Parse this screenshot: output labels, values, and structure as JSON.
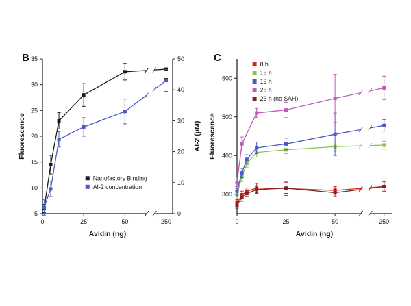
{
  "figure": {
    "background": "#ffffff",
    "axis_color": "#1a1a1a"
  },
  "chart_data": [
    {
      "panel": "B",
      "type": "line",
      "xlabel": "Avidin (ng)",
      "ylabel_left": "Fluorescence",
      "ylabel_right": "AI-2 (μM)",
      "x_ticks": [
        0,
        25,
        50,
        250
      ],
      "x_axis_break_after": 60,
      "yleft_range": [
        5,
        35
      ],
      "yleft_ticks": [
        5,
        10,
        15,
        20,
        25,
        30,
        35
      ],
      "yright_range": [
        0,
        50
      ],
      "yright_ticks": [
        0,
        10,
        20,
        30,
        40,
        50
      ],
      "grid": false,
      "legend_position": "bottom-right",
      "series": [
        {
          "name": "Nanofactory Binding",
          "color": "#1a1a1a",
          "axis": "left",
          "x": [
            1,
            5,
            10,
            25,
            50,
            250
          ],
          "y": [
            6,
            14.5,
            23,
            28,
            32.5,
            33
          ],
          "err": [
            0.8,
            1.8,
            1.6,
            2.2,
            1.6,
            1.8
          ]
        },
        {
          "name": "AI-2 concentration",
          "color": "#4a5ac2",
          "axis": "right",
          "x": [
            1,
            5,
            10,
            25,
            50,
            250
          ],
          "y": [
            2,
            8,
            24,
            28,
            33,
            43
          ],
          "err": [
            2.5,
            2.5,
            2.5,
            3,
            4,
            3.5
          ]
        }
      ]
    },
    {
      "panel": "C",
      "type": "line",
      "xlabel": "Avidin (ng)",
      "ylabel": "Fluorescence",
      "x_ticks": [
        0,
        25,
        50,
        250
      ],
      "x_axis_break_after": 60,
      "y_range": [
        250,
        650
      ],
      "y_ticks": [
        300,
        400,
        500,
        600
      ],
      "grid": false,
      "legend_position": "top-left",
      "series": [
        {
          "name": "8 h",
          "color": "#e0201c",
          "x": [
            0,
            2.5,
            5,
            10,
            25,
            50,
            250
          ],
          "y": [
            278,
            298,
            308,
            316,
            315,
            310,
            320
          ],
          "err": [
            8,
            10,
            8,
            12,
            18,
            10,
            12
          ]
        },
        {
          "name": "16 h",
          "color": "#8fc24e",
          "x": [
            0,
            2.5,
            5,
            10,
            25,
            50,
            250
          ],
          "y": [
            298,
            345,
            380,
            408,
            415,
            423,
            427
          ],
          "err": [
            10,
            12,
            10,
            12,
            10,
            12,
            10
          ]
        },
        {
          "name": "19 h",
          "color": "#4a5ac2",
          "x": [
            0,
            2.5,
            5,
            10,
            25,
            50,
            250
          ],
          "y": [
            308,
            355,
            390,
            420,
            430,
            455,
            478
          ],
          "err": [
            12,
            12,
            12,
            15,
            15,
            55,
            15
          ]
        },
        {
          "name": "26 h",
          "color": "#c357ba",
          "x": [
            0,
            2.5,
            10,
            25,
            50,
            250
          ],
          "y": [
            330,
            430,
            510,
            518,
            548,
            575
          ],
          "err": [
            15,
            18,
            12,
            20,
            62,
            30
          ]
        },
        {
          "name": "26 h (no SAH)",
          "color": "#7d2423",
          "x": [
            0,
            2.5,
            5,
            10,
            25,
            50,
            250
          ],
          "y": [
            272,
            292,
            302,
            312,
            316,
            304,
            320
          ],
          "err": [
            8,
            10,
            8,
            10,
            14,
            10,
            14
          ]
        }
      ]
    }
  ]
}
